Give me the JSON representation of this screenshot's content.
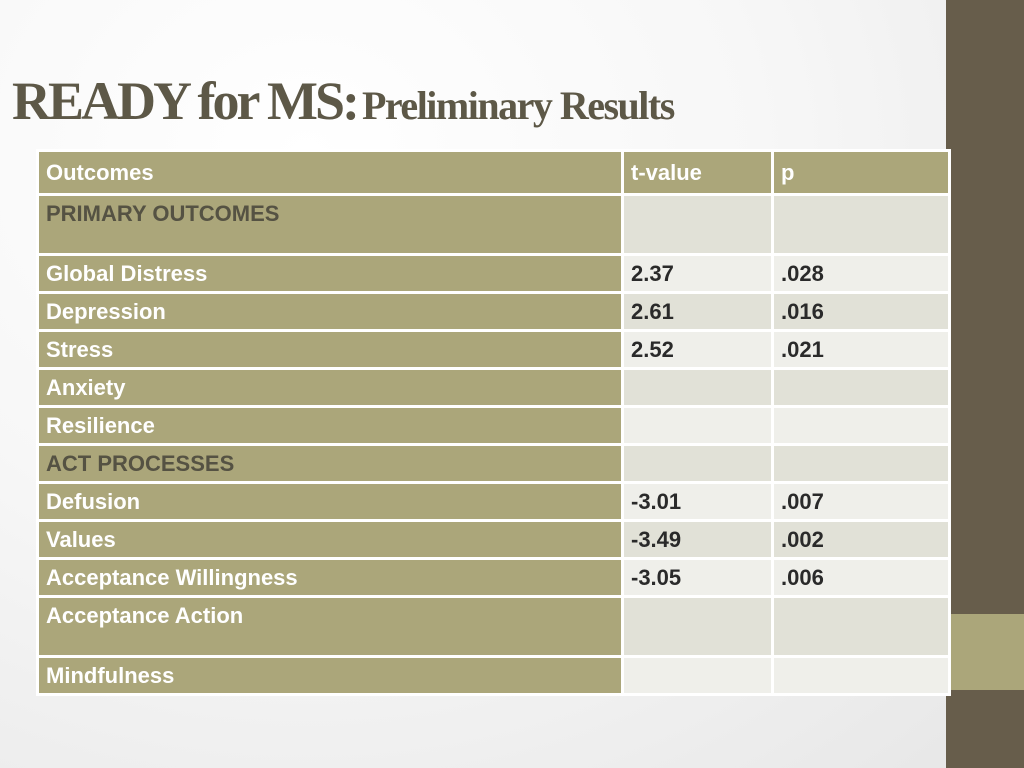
{
  "title": {
    "main": "READY for MS:",
    "sub": "Preliminary Results"
  },
  "table": {
    "columns": [
      "Outcomes",
      "t-value",
      "p"
    ],
    "rows": [
      {
        "label": "PRIMARY OUTCOMES",
        "t": "",
        "p": ""
      },
      {
        "label": "Global Distress",
        "t": "2.37",
        "p": ".028"
      },
      {
        "label": "Depression",
        "t": "2.61",
        "p": ".016"
      },
      {
        "label": "Stress",
        "t": "2.52",
        "p": ".021"
      },
      {
        "label": "Anxiety",
        "t": "",
        "p": ""
      },
      {
        "label": "Resilience",
        "t": "",
        "p": ""
      },
      {
        "label": "ACT PROCESSES",
        "t": "",
        "p": ""
      },
      {
        "label": "Defusion",
        "t": "-3.01",
        "p": ".007"
      },
      {
        "label": "Values",
        "t": "-3.49",
        "p": ".002"
      },
      {
        "label": "Acceptance Willingness",
        "t": "-3.05",
        "p": ".006"
      },
      {
        "label": "Acceptance Action",
        "t": "",
        "p": ""
      },
      {
        "label": "Mindfulness",
        "t": "",
        "p": ""
      }
    ]
  },
  "colors": {
    "accent": "#aba67a",
    "side_strip": "#675d4b",
    "title_text": "#5d5847",
    "cell_light": "#e1e1d7",
    "cell_lighter": "#efefea"
  }
}
